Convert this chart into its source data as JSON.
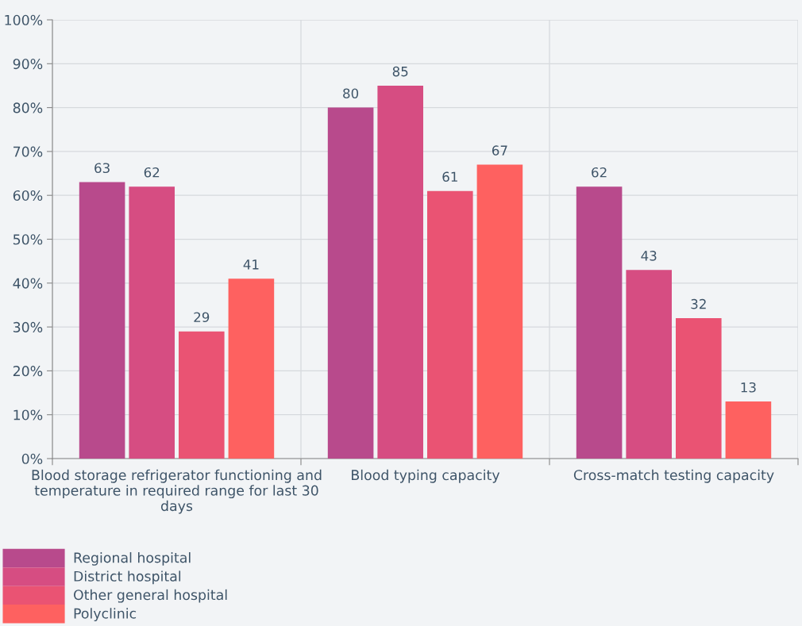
{
  "chart_data": {
    "type": "bar",
    "categories": [
      "Blood storage refrigerator functioning and temperature in required range for last 30 days",
      "Blood typing capacity",
      "Cross-match testing capacity"
    ],
    "series": [
      {
        "name": "Regional hospital",
        "color": "#b84a8c",
        "values": [
          63,
          80,
          62
        ]
      },
      {
        "name": "District hospital",
        "color": "#d64d82",
        "values": [
          62,
          85,
          43
        ]
      },
      {
        "name": "Other general hospital",
        "color": "#ea5373",
        "values": [
          29,
          61,
          32
        ]
      },
      {
        "name": "Polyclinic",
        "color": "#fe6160",
        "values": [
          41,
          67,
          13
        ]
      }
    ],
    "ylim": [
      0,
      100
    ],
    "yticks": [
      {
        "value": 0,
        "label": "0%"
      },
      {
        "value": 10,
        "label": "10%"
      },
      {
        "value": 20,
        "label": "20%"
      },
      {
        "value": 30,
        "label": "30%"
      },
      {
        "value": 40,
        "label": "40%"
      },
      {
        "value": 50,
        "label": "50%"
      },
      {
        "value": 60,
        "label": "60%"
      },
      {
        "value": 70,
        "label": "70%"
      },
      {
        "value": 80,
        "label": "80%"
      },
      {
        "value": 90,
        "label": "90%"
      },
      {
        "value": 100,
        "label": "100%"
      }
    ],
    "grid": true,
    "data_labels": true,
    "legend": "bottom"
  }
}
